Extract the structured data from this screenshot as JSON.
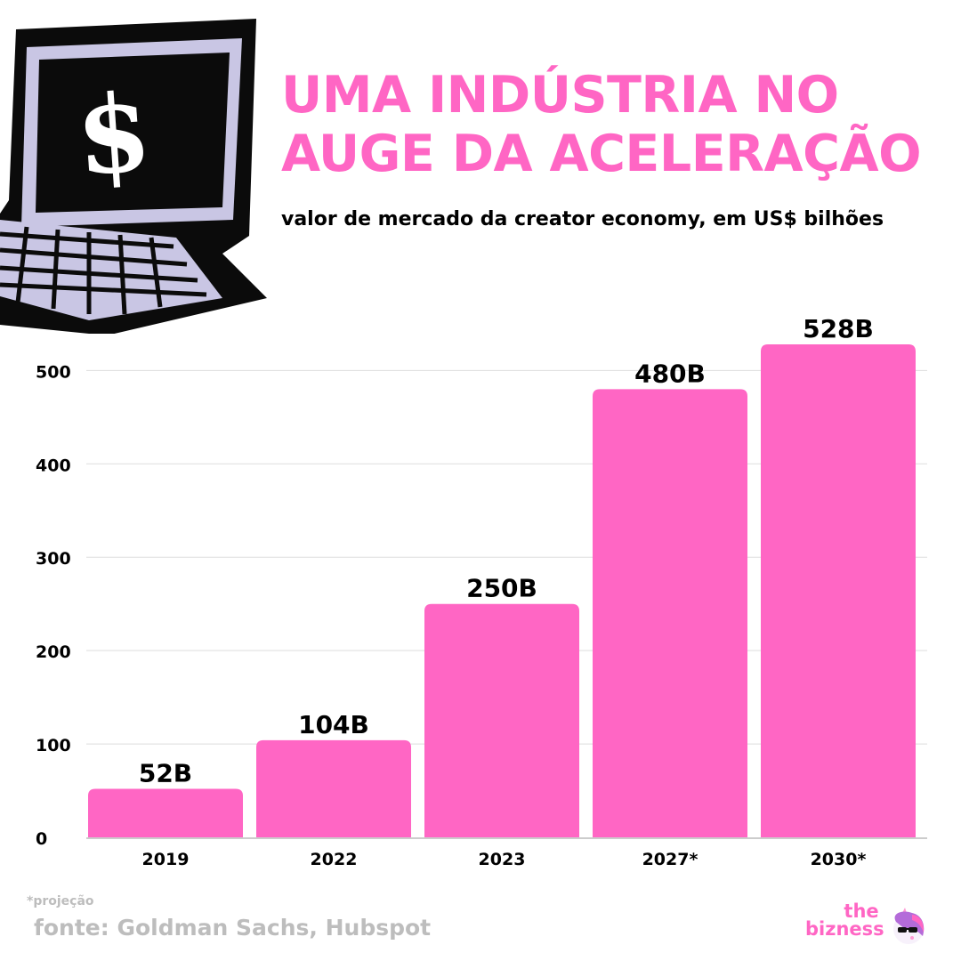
{
  "header": {
    "title_line1": "UMA INDÚSTRIA NO",
    "title_line2": "AUGE DA ACELERAÇÃO",
    "subtitle": "valor de mercado da creator economy, em US$ bilhões"
  },
  "illustration": {
    "icon": "laptop-dollar-icon",
    "symbol": "$"
  },
  "colors": {
    "accent": "#ff66c4",
    "text": "#000000",
    "muted": "#bdbdbd",
    "grid": "#dddddd"
  },
  "chart_data": {
    "type": "bar",
    "categories": [
      "2019",
      "2022",
      "2023",
      "2027*",
      "2030*"
    ],
    "values": [
      52,
      104,
      250,
      480,
      528
    ],
    "data_labels": [
      "52B",
      "104B",
      "250B",
      "480B",
      "528B"
    ],
    "yticks": [
      0,
      100,
      200,
      300,
      400,
      500
    ],
    "ylim": [
      0,
      528
    ],
    "xlabel": "",
    "ylabel": "",
    "grid": true
  },
  "footer": {
    "footnote": "*projeção",
    "source": "fonte: Goldman Sachs, Hubspot",
    "brand_line1": "the",
    "brand_line2": "bizness",
    "brand_icon": "unicorn-sunglasses-icon"
  }
}
